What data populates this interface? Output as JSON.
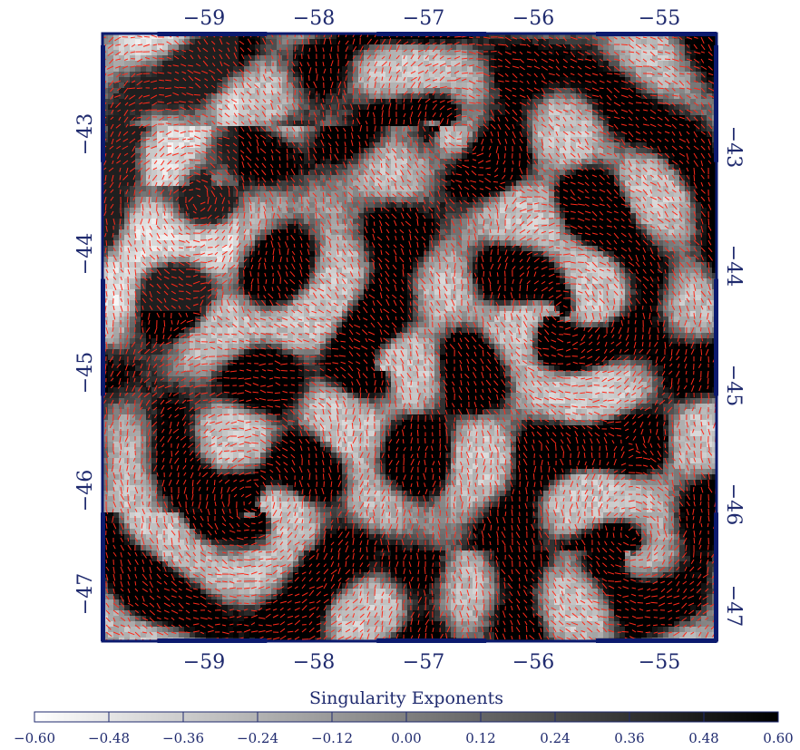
{
  "map": {
    "lon_ticks": [
      "−59",
      "−58",
      "−57",
      "−56",
      "−55"
    ],
    "lon_values": [
      -59,
      -58,
      -57,
      -56,
      -55
    ],
    "lat_ticks": [
      "−43",
      "−44",
      "−45",
      "−46",
      "−47"
    ],
    "lat_values": [
      -43,
      -44,
      -45,
      -46,
      -47
    ],
    "lon_range": [
      -60.0,
      -54.4
    ],
    "lat_range": [
      -42.4,
      -47.6
    ],
    "field": "singularity exponents (grayscale) with red flow vectors",
    "colors": {
      "frame": "#0b1a6e",
      "label": "#1f2a6e",
      "vector": "#ff2a1a"
    }
  },
  "colorbar": {
    "title": "Singularity Exponents",
    "min": -0.6,
    "max": 0.6,
    "tick_labels": [
      "−0.60",
      "−0.48",
      "−0.36",
      "−0.24",
      "−0.12",
      "0.00",
      "0.12",
      "0.24",
      "0.36",
      "0.48",
      "0.60"
    ],
    "colormap": "white-to-black"
  }
}
